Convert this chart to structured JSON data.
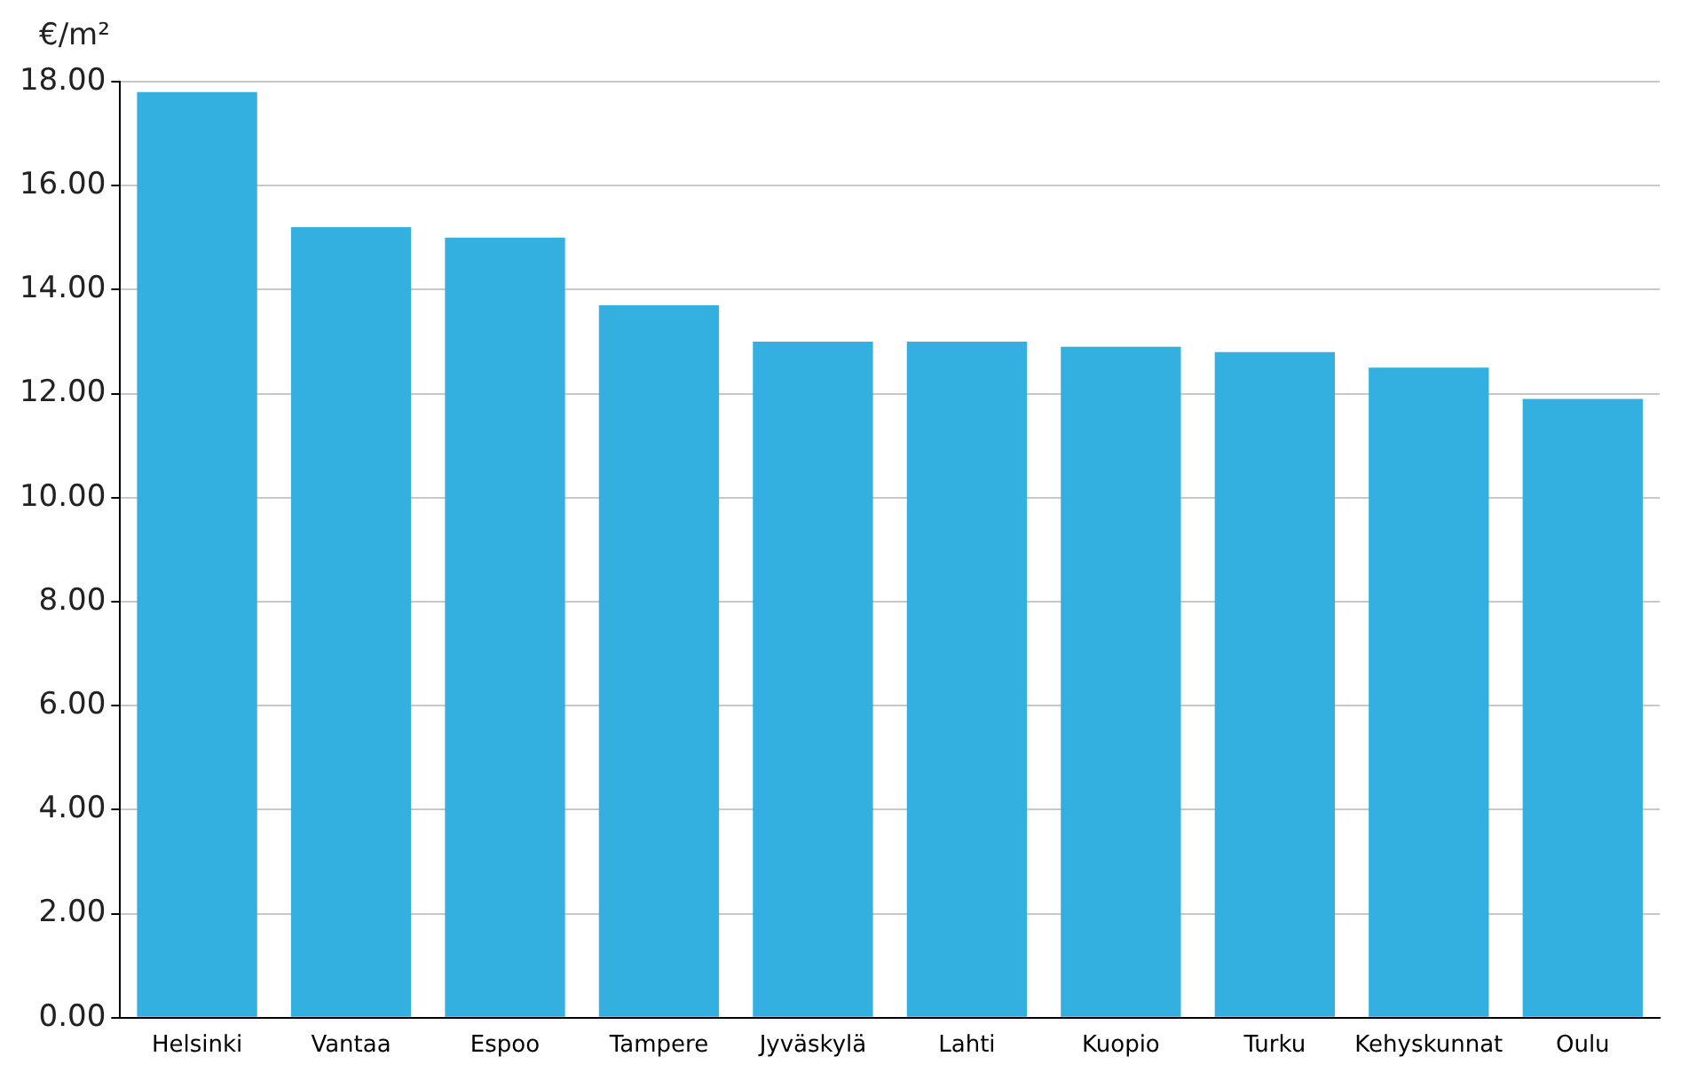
{
  "chart_data": {
    "type": "bar",
    "ylabel": "€/m²",
    "categories": [
      "Helsinki",
      "Vantaa",
      "Espoo",
      "Tampere",
      "Jyväskylä",
      "Lahti",
      "Kuopio",
      "Turku",
      "Kehyskunnat",
      "Oulu"
    ],
    "values": [
      17.8,
      15.2,
      15.0,
      13.7,
      13.0,
      13.0,
      12.9,
      12.8,
      12.5,
      11.9
    ],
    "color": "#33afe0",
    "ylim": [
      0,
      18
    ],
    "yticks": [
      {
        "value": 0,
        "label": "0.00"
      },
      {
        "value": 2,
        "label": "2.00"
      },
      {
        "value": 4,
        "label": "4.00"
      },
      {
        "value": 6,
        "label": "6.00"
      },
      {
        "value": 8,
        "label": "8.00"
      },
      {
        "value": 10,
        "label": "10.00"
      },
      {
        "value": 12,
        "label": "12.00"
      },
      {
        "value": 14,
        "label": "14.00"
      },
      {
        "value": 16,
        "label": "16.00"
      },
      {
        "value": 18,
        "label": "18.00"
      }
    ],
    "grid": "y"
  }
}
